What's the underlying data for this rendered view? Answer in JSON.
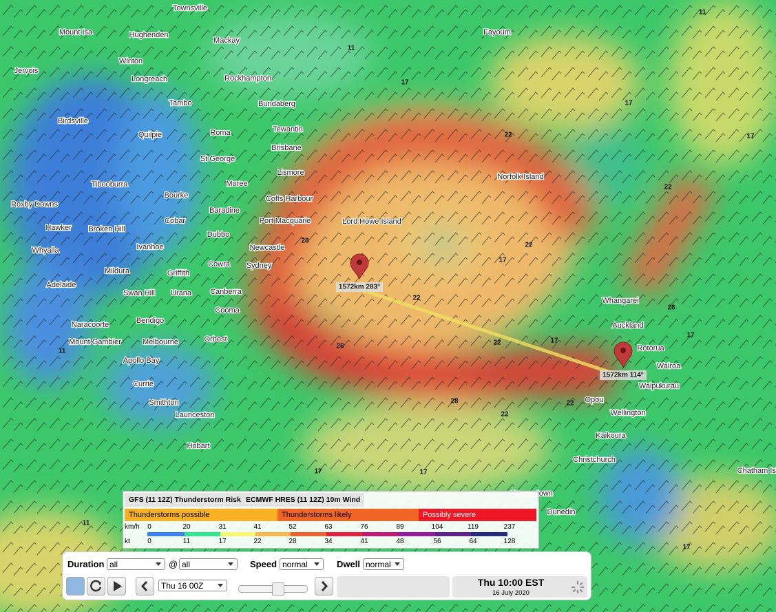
{
  "map": {
    "places": [
      "Townsville",
      "Mount Isa",
      "Hughenden",
      "Mackay",
      "Fayoum",
      "Winton",
      "Jervois",
      "Longreach",
      "Rockhampton",
      "Tambo",
      "Bundaberg",
      "Birdsville",
      "Quilpie",
      "Roma",
      "Tewantin",
      "Brisbane",
      "St George",
      "Lismore",
      "Tibooburra",
      "Moree",
      "Norfolk Island",
      "Bourke",
      "Coffs Harbour",
      "Roxby Downs",
      "Baradine",
      "Cobar",
      "Port Macquarie",
      "Lord Howe Island",
      "Hawker",
      "Broken Hill",
      "Dubbo",
      "Ivanhoe",
      "Newcastle",
      "Whyalla",
      "Sydney",
      "Cowra",
      "Mildura",
      "Griffith",
      "Adelaide",
      "Swan Hill",
      "Urana",
      "Canberra",
      "Whangarei",
      "Cooma",
      "Naracoorte",
      "Bendigo",
      "Auckland",
      "Orbost",
      "Mount Gambier",
      "Melbourne",
      "Rotorua",
      "Apollo Bay",
      "Wairoa",
      "Waipukurau",
      "Currie",
      "Smithton",
      "Opou",
      "Wellington",
      "Launceston",
      "Kaikoura",
      "Hobart",
      "Christchurch",
      "Chatham Isl",
      "Queenstown",
      "Dunedin"
    ],
    "contour_labels": [
      11,
      11,
      17,
      17,
      17,
      22,
      22,
      22,
      17,
      22,
      28,
      22,
      17,
      28,
      22,
      22,
      17,
      17,
      28,
      17,
      11,
      17,
      11,
      28
    ],
    "markers": [
      "1572km 283°",
      "1572km 114°"
    ]
  },
  "legend": {
    "tabs": [
      "GFS (11 12Z) Thunderstorm Risk",
      "ECMWF HRES (11 12Z) 10m Wind"
    ],
    "thunder": [
      "Thunderstorms possible",
      "Thunderstorms likely",
      "Possibly severe"
    ],
    "kmh_unit": "km/h",
    "kmh": [
      0,
      20,
      31,
      41,
      52,
      63,
      76,
      89,
      104,
      119,
      237
    ],
    "kt_unit": "kt",
    "kt": [
      0,
      11,
      17,
      22,
      28,
      34,
      41,
      48,
      56,
      64,
      128
    ]
  },
  "controls": {
    "duration_label": "Duration",
    "duration": "all",
    "at": "@",
    "at_value": "all",
    "speed_label": "Speed",
    "speed": "normal",
    "dwell_label": "Dwell",
    "dwell": "normal",
    "run": "Thu 16 00Z",
    "time": "Thu 10:00 EST",
    "date": "16 July 2020"
  }
}
